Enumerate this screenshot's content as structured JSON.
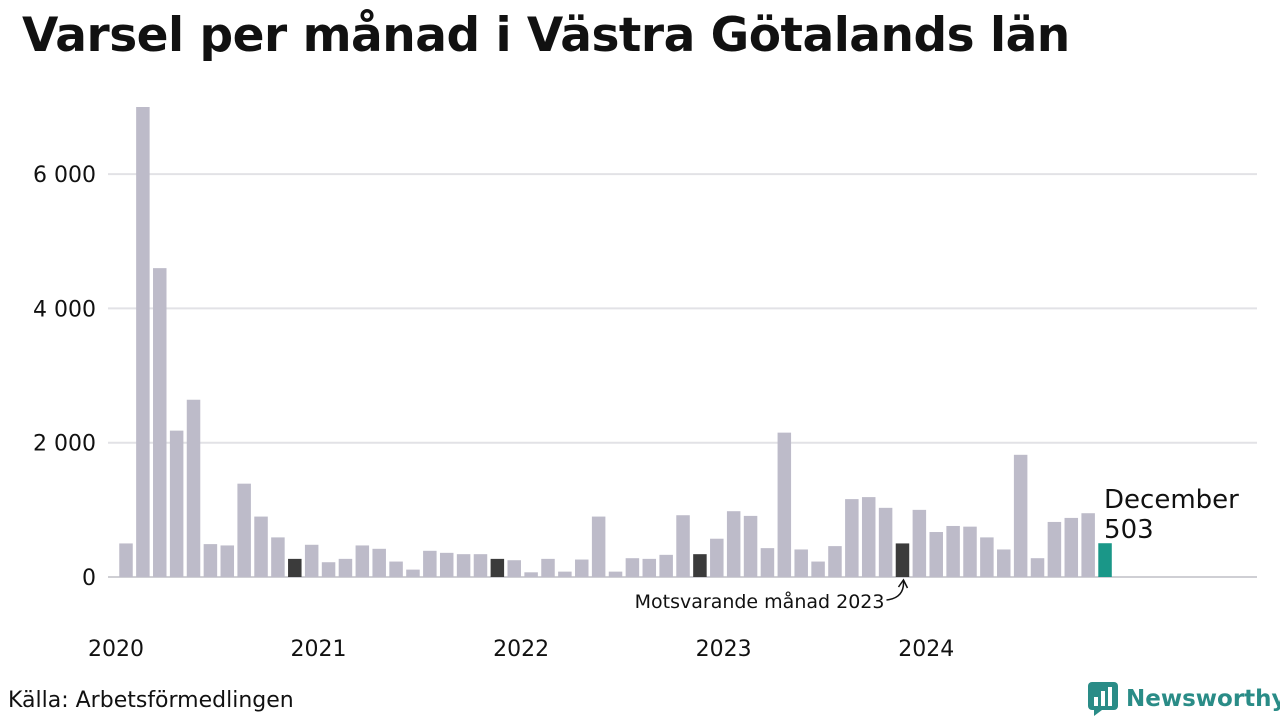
{
  "title": "Varsel per månad i Västra Götalands län",
  "source": "Källa: Arbetsförmedlingen",
  "brand": {
    "name": "Newsworthy",
    "icon": "newsworthy-logo-icon",
    "color": "#2a8c87"
  },
  "chart_data": {
    "type": "bar",
    "title": "Varsel per månad i Västra Götalands län",
    "xlabel": "",
    "ylabel": "",
    "ylim": [
      0,
      7000
    ],
    "y_ticks": [
      {
        "value": 0,
        "label": "0"
      },
      {
        "value": 2000,
        "label": "2 000"
      },
      {
        "value": 4000,
        "label": "4 000"
      },
      {
        "value": 6000,
        "label": "6 000"
      }
    ],
    "x_tick_labels": [
      "2020",
      "2021",
      "2022",
      "2023",
      "2024"
    ],
    "grid": true,
    "colors": {
      "default": "#bdbbc9",
      "same_month": "#3b3b3b",
      "latest": "#1a9788"
    },
    "values": [
      500,
      7000,
      4600,
      2180,
      2640,
      490,
      470,
      1390,
      900,
      590,
      270,
      480,
      220,
      270,
      470,
      420,
      230,
      110,
      390,
      360,
      340,
      340,
      270,
      250,
      70,
      270,
      80,
      260,
      900,
      80,
      280,
      270,
      330,
      920,
      340,
      570,
      980,
      910,
      430,
      2150,
      410,
      230,
      460,
      1160,
      1190,
      1030,
      500,
      1000,
      670,
      760,
      750,
      590,
      410,
      1820,
      280,
      820,
      880,
      950,
      503
    ],
    "highlight_same_month": [
      10,
      22,
      34,
      46
    ],
    "highlight_latest": 58,
    "annotations": [
      {
        "text": "Motsvarande månad 2023",
        "target_index": 46
      },
      {
        "text": "December",
        "value_text": "503",
        "target_index": 58
      }
    ]
  }
}
